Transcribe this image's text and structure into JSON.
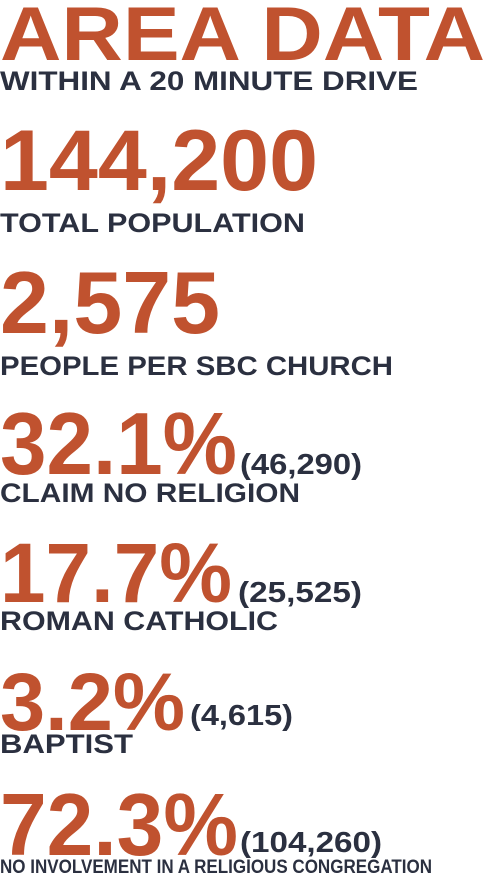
{
  "header": {
    "title": "AREA DATA",
    "subtitle": "WITHIN A 20 MINUTE DRIVE"
  },
  "stats": [
    {
      "value": "144,200",
      "label": "TOTAL POPULATION"
    },
    {
      "value": "2,575",
      "label": "PEOPLE PER SBC CHURCH"
    },
    {
      "value": "32.1%",
      "count": "(46,290)",
      "label": "CLAIM NO RELIGION"
    },
    {
      "value": "17.7%",
      "count": "(25,525)",
      "label": "ROMAN CATHOLIC"
    },
    {
      "value": "3.2%",
      "count": "(4,615)",
      "label": "BAPTIST"
    },
    {
      "value": "72.3%",
      "count": "(104,260)",
      "label": "NO INVOLVEMENT IN A RELIGIOUS CONGREGATION"
    }
  ]
}
